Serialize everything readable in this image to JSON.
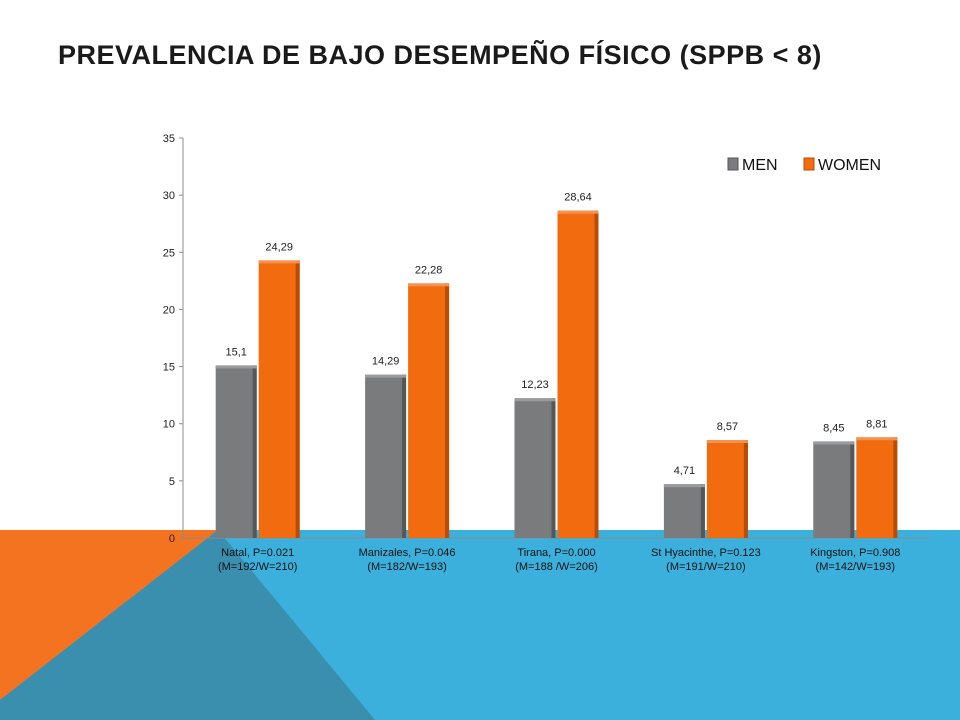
{
  "slide": {
    "title": "PREVALENCIA DE BAJO DESEMPEÑO FÍSICO  (SPPB < 8)",
    "colors": {
      "background": "#ffffff",
      "band_blue": "#3bb0dc",
      "band_orange": "#f47321",
      "band_overlap": "#3a8eae"
    }
  },
  "chart_data": {
    "type": "bar",
    "title": "",
    "xlabel": "",
    "ylabel": "",
    "ylim": [
      0,
      35
    ],
    "yticks": [
      0,
      5,
      10,
      15,
      20,
      25,
      30,
      35
    ],
    "grid": false,
    "legend_position": "top-right",
    "categories": [
      [
        "Natal, P=0.021",
        "(M=192/W=210)"
      ],
      [
        "Manizales,  P=0.046",
        "(M=182/W=193)"
      ],
      [
        "Tirana,  P=0.000",
        "(M=188 /W=206)"
      ],
      [
        "St Hyacinthe, P=0.123",
        "(M=191/W=210)"
      ],
      [
        "Kingston, P=0.908",
        "(M=142/W=193)"
      ]
    ],
    "series": [
      {
        "name": "MEN",
        "color": "#7f7f7f",
        "values": [
          15.1,
          14.29,
          12.23,
          4.71,
          8.45
        ],
        "labels": [
          "15,1",
          "14,29",
          "12,23",
          "4,71",
          "8,45"
        ]
      },
      {
        "name": "WOMEN",
        "color": "#f26b0f",
        "values": [
          24.29,
          22.28,
          28.64,
          8.57,
          8.81
        ],
        "labels": [
          "24,29",
          "22,28",
          "28,64",
          "8,57",
          "8,81"
        ]
      }
    ]
  }
}
